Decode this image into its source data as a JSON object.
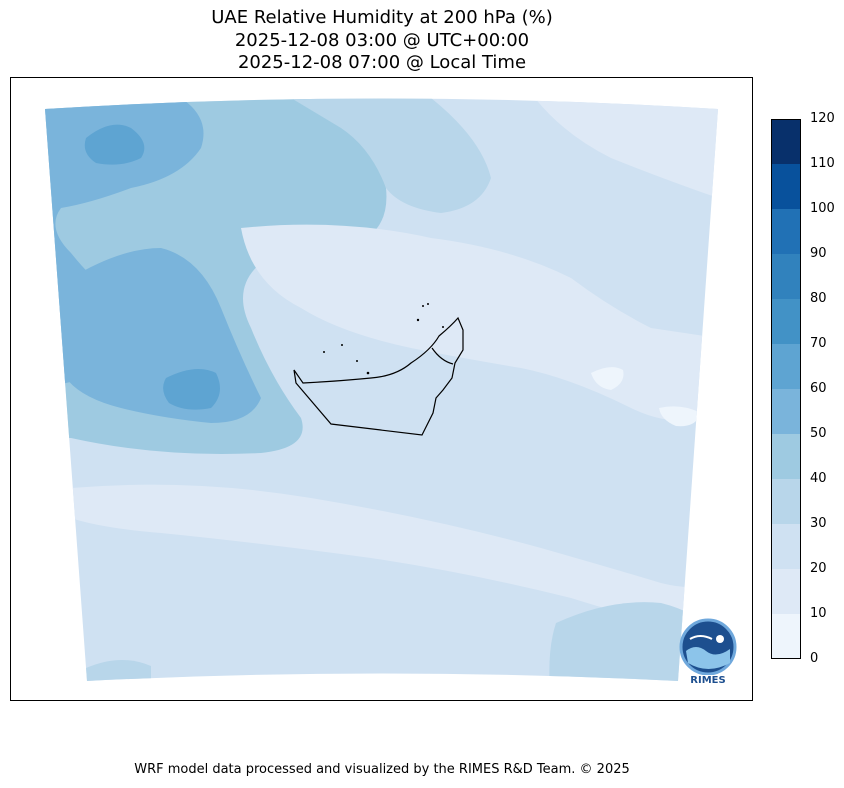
{
  "title": {
    "line1": "UAE Relative Humidity at 200 hPa (%)",
    "line2": "2025-12-08 03:00 @ UTC+00:00",
    "line3": "2025-12-08 07:00 @ Local Time"
  },
  "colorbar": {
    "ticks": [
      "120",
      "110",
      "100",
      "90",
      "80",
      "70",
      "60",
      "50",
      "40",
      "30",
      "20",
      "10",
      "0"
    ],
    "colors": [
      "#08306b",
      "#08519c",
      "#2171b5",
      "#3182bd",
      "#4292c6",
      "#5ea4d2",
      "#7ab4db",
      "#9ecae1",
      "#b8d6ea",
      "#cfe1f2",
      "#dee9f6",
      "#eef5fc"
    ]
  },
  "footer": "WRF model data processed and visualized by the RIMES R&D Team. © 2025",
  "logo": {
    "text": "RIMES",
    "icon": "rimes-logo-icon"
  }
}
